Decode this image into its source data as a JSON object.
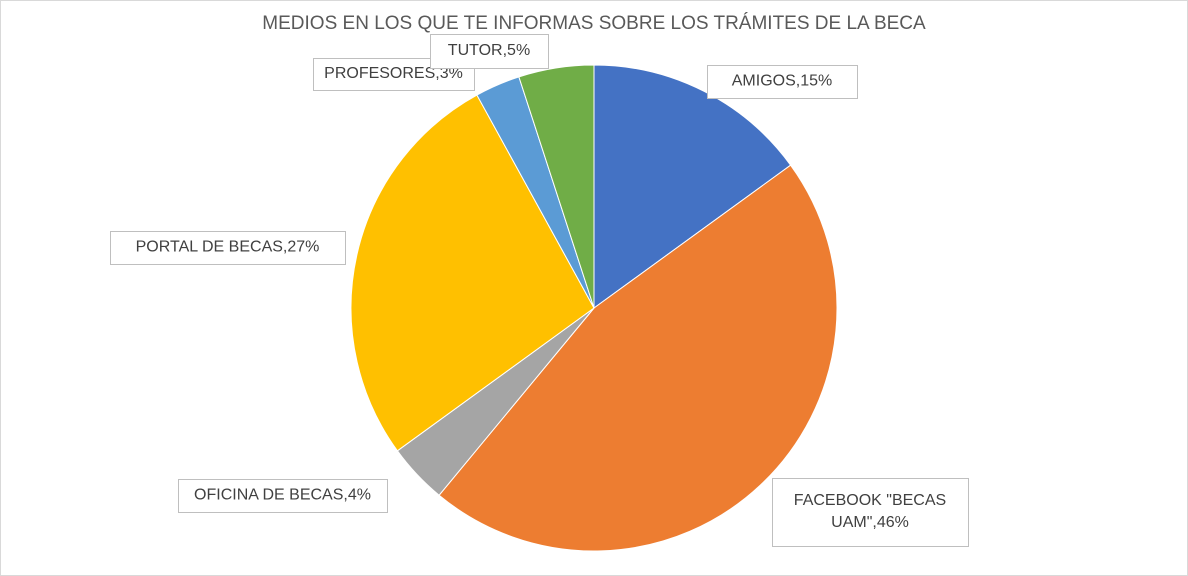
{
  "chart_data": {
    "type": "pie",
    "title": "MEDIOS EN LOS QUE TE INFORMAS SOBRE LOS TRÁMITES DE LA BECA",
    "values": [
      15,
      46,
      4,
      27,
      3,
      5
    ],
    "value_labels": [
      "AMIGOS,15%",
      "FACEBOOK \"BECAS UAM\",46%",
      "OFICINA DE BECAS,4%",
      "PORTAL DE BECAS,27%",
      "PROFESORES,3%",
      "TUTOR,5%"
    ],
    "colors": [
      "#4472c4",
      "#ed7d31",
      "#a5a5a5",
      "#ffc000",
      "#5b9bd5",
      "#70ad47"
    ]
  }
}
